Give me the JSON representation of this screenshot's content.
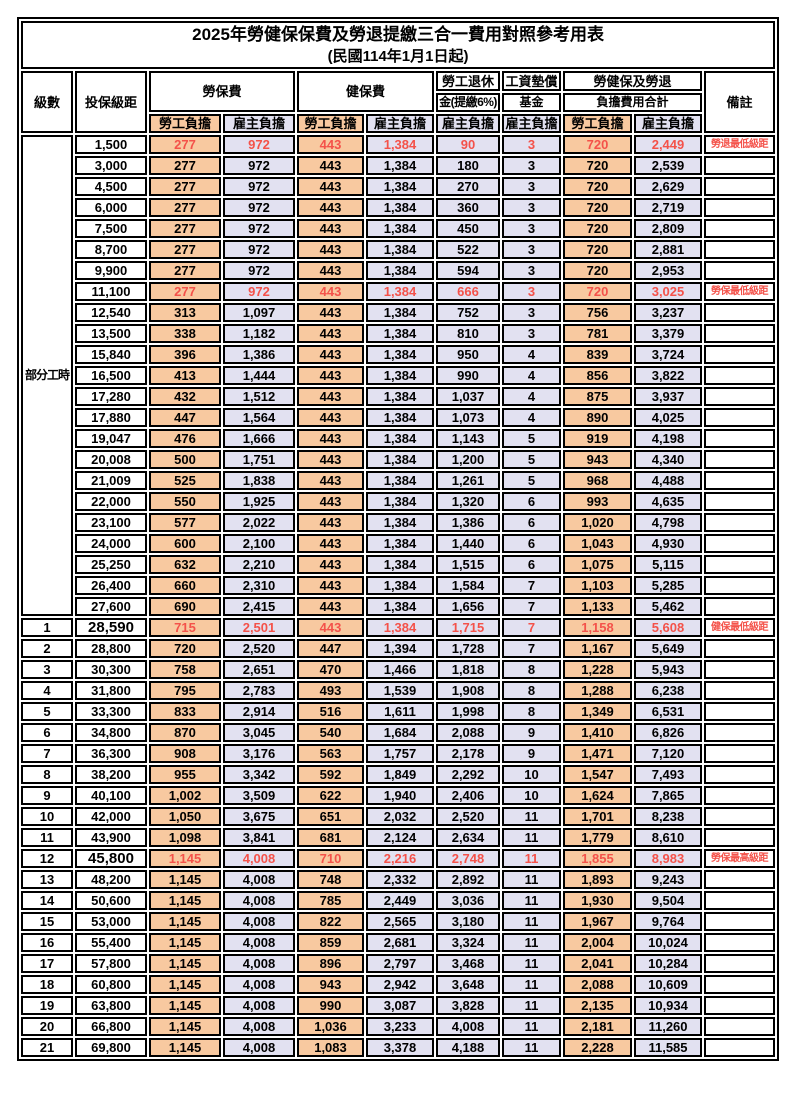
{
  "title": "2025年勞健保保費及勞退提繳三合一費用對照參考用表",
  "subtitle": "(民國114年1月1日起)",
  "colors": {
    "employee_col_bg": "#F8C9A0",
    "employer_col_bg": "#E2E1F1",
    "highlight_red": "#F4524A",
    "border": "#000000"
  },
  "header": {
    "level": "級數",
    "bracket": "投保級距",
    "labor_ins": "勞保費",
    "health_ins": "健保費",
    "pension_line1": "勞工退休",
    "pension_line2": "金(提繳6%)",
    "wage_fund_line1": "工資墊償",
    "wage_fund_line2": "基金",
    "total_line1": "勞健保及勞退",
    "total_line2": "負擔費用合計",
    "remark": "備註",
    "employee": "勞工負擔",
    "employer": "雇主負擔"
  },
  "part_time_label": "部分工時",
  "part_time_rowspan": 23,
  "rows": [
    {
      "level": "",
      "bracket": "1,500",
      "labor_emp": "277",
      "labor_er": "972",
      "health_emp": "443",
      "health_er": "1,384",
      "pension": "90",
      "wage": "3",
      "total_emp": "720",
      "total_er": "2,449",
      "remark": "勞退最低級距",
      "red": true
    },
    {
      "level": "",
      "bracket": "3,000",
      "labor_emp": "277",
      "labor_er": "972",
      "health_emp": "443",
      "health_er": "1,384",
      "pension": "180",
      "wage": "3",
      "total_emp": "720",
      "total_er": "2,539",
      "remark": ""
    },
    {
      "level": "",
      "bracket": "4,500",
      "labor_emp": "277",
      "labor_er": "972",
      "health_emp": "443",
      "health_er": "1,384",
      "pension": "270",
      "wage": "3",
      "total_emp": "720",
      "total_er": "2,629",
      "remark": ""
    },
    {
      "level": "",
      "bracket": "6,000",
      "labor_emp": "277",
      "labor_er": "972",
      "health_emp": "443",
      "health_er": "1,384",
      "pension": "360",
      "wage": "3",
      "total_emp": "720",
      "total_er": "2,719",
      "remark": ""
    },
    {
      "level": "",
      "bracket": "7,500",
      "labor_emp": "277",
      "labor_er": "972",
      "health_emp": "443",
      "health_er": "1,384",
      "pension": "450",
      "wage": "3",
      "total_emp": "720",
      "total_er": "2,809",
      "remark": ""
    },
    {
      "level": "",
      "bracket": "8,700",
      "labor_emp": "277",
      "labor_er": "972",
      "health_emp": "443",
      "health_er": "1,384",
      "pension": "522",
      "wage": "3",
      "total_emp": "720",
      "total_er": "2,881",
      "remark": ""
    },
    {
      "level": "",
      "bracket": "9,900",
      "labor_emp": "277",
      "labor_er": "972",
      "health_emp": "443",
      "health_er": "1,384",
      "pension": "594",
      "wage": "3",
      "total_emp": "720",
      "total_er": "2,953",
      "remark": ""
    },
    {
      "level": "",
      "bracket": "11,100",
      "labor_emp": "277",
      "labor_er": "972",
      "health_emp": "443",
      "health_er": "1,384",
      "pension": "666",
      "wage": "3",
      "total_emp": "720",
      "total_er": "3,025",
      "remark": "勞保最低級距",
      "red": true
    },
    {
      "level": "",
      "bracket": "12,540",
      "labor_emp": "313",
      "labor_er": "1,097",
      "health_emp": "443",
      "health_er": "1,384",
      "pension": "752",
      "wage": "3",
      "total_emp": "756",
      "total_er": "3,237",
      "remark": ""
    },
    {
      "level": "",
      "bracket": "13,500",
      "labor_emp": "338",
      "labor_er": "1,182",
      "health_emp": "443",
      "health_er": "1,384",
      "pension": "810",
      "wage": "3",
      "total_emp": "781",
      "total_er": "3,379",
      "remark": ""
    },
    {
      "level": "",
      "bracket": "15,840",
      "labor_emp": "396",
      "labor_er": "1,386",
      "health_emp": "443",
      "health_er": "1,384",
      "pension": "950",
      "wage": "4",
      "total_emp": "839",
      "total_er": "3,724",
      "remark": ""
    },
    {
      "level": "",
      "bracket": "16,500",
      "labor_emp": "413",
      "labor_er": "1,444",
      "health_emp": "443",
      "health_er": "1,384",
      "pension": "990",
      "wage": "4",
      "total_emp": "856",
      "total_er": "3,822",
      "remark": ""
    },
    {
      "level": "",
      "bracket": "17,280",
      "labor_emp": "432",
      "labor_er": "1,512",
      "health_emp": "443",
      "health_er": "1,384",
      "pension": "1,037",
      "wage": "4",
      "total_emp": "875",
      "total_er": "3,937",
      "remark": ""
    },
    {
      "level": "",
      "bracket": "17,880",
      "labor_emp": "447",
      "labor_er": "1,564",
      "health_emp": "443",
      "health_er": "1,384",
      "pension": "1,073",
      "wage": "4",
      "total_emp": "890",
      "total_er": "4,025",
      "remark": ""
    },
    {
      "level": "",
      "bracket": "19,047",
      "labor_emp": "476",
      "labor_er": "1,666",
      "health_emp": "443",
      "health_er": "1,384",
      "pension": "1,143",
      "wage": "5",
      "total_emp": "919",
      "total_er": "4,198",
      "remark": ""
    },
    {
      "level": "",
      "bracket": "20,008",
      "labor_emp": "500",
      "labor_er": "1,751",
      "health_emp": "443",
      "health_er": "1,384",
      "pension": "1,200",
      "wage": "5",
      "total_emp": "943",
      "total_er": "4,340",
      "remark": ""
    },
    {
      "level": "",
      "bracket": "21,009",
      "labor_emp": "525",
      "labor_er": "1,838",
      "health_emp": "443",
      "health_er": "1,384",
      "pension": "1,261",
      "wage": "5",
      "total_emp": "968",
      "total_er": "4,488",
      "remark": ""
    },
    {
      "level": "",
      "bracket": "22,000",
      "labor_emp": "550",
      "labor_er": "1,925",
      "health_emp": "443",
      "health_er": "1,384",
      "pension": "1,320",
      "wage": "6",
      "total_emp": "993",
      "total_er": "4,635",
      "remark": ""
    },
    {
      "level": "",
      "bracket": "23,100",
      "labor_emp": "577",
      "labor_er": "2,022",
      "health_emp": "443",
      "health_er": "1,384",
      "pension": "1,386",
      "wage": "6",
      "total_emp": "1,020",
      "total_er": "4,798",
      "remark": ""
    },
    {
      "level": "",
      "bracket": "24,000",
      "labor_emp": "600",
      "labor_er": "2,100",
      "health_emp": "443",
      "health_er": "1,384",
      "pension": "1,440",
      "wage": "6",
      "total_emp": "1,043",
      "total_er": "4,930",
      "remark": ""
    },
    {
      "level": "",
      "bracket": "25,250",
      "labor_emp": "632",
      "labor_er": "2,210",
      "health_emp": "443",
      "health_er": "1,384",
      "pension": "1,515",
      "wage": "6",
      "total_emp": "1,075",
      "total_er": "5,115",
      "remark": ""
    },
    {
      "level": "",
      "bracket": "26,400",
      "labor_emp": "660",
      "labor_er": "2,310",
      "health_emp": "443",
      "health_er": "1,384",
      "pension": "1,584",
      "wage": "7",
      "total_emp": "1,103",
      "total_er": "5,285",
      "remark": ""
    },
    {
      "level": "",
      "bracket": "27,600",
      "labor_emp": "690",
      "labor_er": "2,415",
      "health_emp": "443",
      "health_er": "1,384",
      "pension": "1,656",
      "wage": "7",
      "total_emp": "1,133",
      "total_er": "5,462",
      "remark": ""
    },
    {
      "level": "1",
      "bracket": "28,590",
      "labor_emp": "715",
      "labor_er": "2,501",
      "health_emp": "443",
      "health_er": "1,384",
      "pension": "1,715",
      "wage": "7",
      "total_emp": "1,158",
      "total_er": "5,608",
      "remark": "健保最低級距",
      "red": true,
      "big": true
    },
    {
      "level": "2",
      "bracket": "28,800",
      "labor_emp": "720",
      "labor_er": "2,520",
      "health_emp": "447",
      "health_er": "1,394",
      "pension": "1,728",
      "wage": "7",
      "total_emp": "1,167",
      "total_er": "5,649",
      "remark": ""
    },
    {
      "level": "3",
      "bracket": "30,300",
      "labor_emp": "758",
      "labor_er": "2,651",
      "health_emp": "470",
      "health_er": "1,466",
      "pension": "1,818",
      "wage": "8",
      "total_emp": "1,228",
      "total_er": "5,943",
      "remark": ""
    },
    {
      "level": "4",
      "bracket": "31,800",
      "labor_emp": "795",
      "labor_er": "2,783",
      "health_emp": "493",
      "health_er": "1,539",
      "pension": "1,908",
      "wage": "8",
      "total_emp": "1,288",
      "total_er": "6,238",
      "remark": ""
    },
    {
      "level": "5",
      "bracket": "33,300",
      "labor_emp": "833",
      "labor_er": "2,914",
      "health_emp": "516",
      "health_er": "1,611",
      "pension": "1,998",
      "wage": "8",
      "total_emp": "1,349",
      "total_er": "6,531",
      "remark": ""
    },
    {
      "level": "6",
      "bracket": "34,800",
      "labor_emp": "870",
      "labor_er": "3,045",
      "health_emp": "540",
      "health_er": "1,684",
      "pension": "2,088",
      "wage": "9",
      "total_emp": "1,410",
      "total_er": "6,826",
      "remark": ""
    },
    {
      "level": "7",
      "bracket": "36,300",
      "labor_emp": "908",
      "labor_er": "3,176",
      "health_emp": "563",
      "health_er": "1,757",
      "pension": "2,178",
      "wage": "9",
      "total_emp": "1,471",
      "total_er": "7,120",
      "remark": ""
    },
    {
      "level": "8",
      "bracket": "38,200",
      "labor_emp": "955",
      "labor_er": "3,342",
      "health_emp": "592",
      "health_er": "1,849",
      "pension": "2,292",
      "wage": "10",
      "total_emp": "1,547",
      "total_er": "7,493",
      "remark": ""
    },
    {
      "level": "9",
      "bracket": "40,100",
      "labor_emp": "1,002",
      "labor_er": "3,509",
      "health_emp": "622",
      "health_er": "1,940",
      "pension": "2,406",
      "wage": "10",
      "total_emp": "1,624",
      "total_er": "7,865",
      "remark": ""
    },
    {
      "level": "10",
      "bracket": "42,000",
      "labor_emp": "1,050",
      "labor_er": "3,675",
      "health_emp": "651",
      "health_er": "2,032",
      "pension": "2,520",
      "wage": "11",
      "total_emp": "1,701",
      "total_er": "8,238",
      "remark": ""
    },
    {
      "level": "11",
      "bracket": "43,900",
      "labor_emp": "1,098",
      "labor_er": "3,841",
      "health_emp": "681",
      "health_er": "2,124",
      "pension": "2,634",
      "wage": "11",
      "total_emp": "1,779",
      "total_er": "8,610",
      "remark": ""
    },
    {
      "level": "12",
      "bracket": "45,800",
      "labor_emp": "1,145",
      "labor_er": "4,008",
      "health_emp": "710",
      "health_er": "2,216",
      "pension": "2,748",
      "wage": "11",
      "total_emp": "1,855",
      "total_er": "8,983",
      "remark": "勞保最高級距",
      "red": true,
      "big": true
    },
    {
      "level": "13",
      "bracket": "48,200",
      "labor_emp": "1,145",
      "labor_er": "4,008",
      "health_emp": "748",
      "health_er": "2,332",
      "pension": "2,892",
      "wage": "11",
      "total_emp": "1,893",
      "total_er": "9,243",
      "remark": ""
    },
    {
      "level": "14",
      "bracket": "50,600",
      "labor_emp": "1,145",
      "labor_er": "4,008",
      "health_emp": "785",
      "health_er": "2,449",
      "pension": "3,036",
      "wage": "11",
      "total_emp": "1,930",
      "total_er": "9,504",
      "remark": ""
    },
    {
      "level": "15",
      "bracket": "53,000",
      "labor_emp": "1,145",
      "labor_er": "4,008",
      "health_emp": "822",
      "health_er": "2,565",
      "pension": "3,180",
      "wage": "11",
      "total_emp": "1,967",
      "total_er": "9,764",
      "remark": ""
    },
    {
      "level": "16",
      "bracket": "55,400",
      "labor_emp": "1,145",
      "labor_er": "4,008",
      "health_emp": "859",
      "health_er": "2,681",
      "pension": "3,324",
      "wage": "11",
      "total_emp": "2,004",
      "total_er": "10,024",
      "remark": ""
    },
    {
      "level": "17",
      "bracket": "57,800",
      "labor_emp": "1,145",
      "labor_er": "4,008",
      "health_emp": "896",
      "health_er": "2,797",
      "pension": "3,468",
      "wage": "11",
      "total_emp": "2,041",
      "total_er": "10,284",
      "remark": ""
    },
    {
      "level": "18",
      "bracket": "60,800",
      "labor_emp": "1,145",
      "labor_er": "4,008",
      "health_emp": "943",
      "health_er": "2,942",
      "pension": "3,648",
      "wage": "11",
      "total_emp": "2,088",
      "total_er": "10,609",
      "remark": ""
    },
    {
      "level": "19",
      "bracket": "63,800",
      "labor_emp": "1,145",
      "labor_er": "4,008",
      "health_emp": "990",
      "health_er": "3,087",
      "pension": "3,828",
      "wage": "11",
      "total_emp": "2,135",
      "total_er": "10,934",
      "remark": ""
    },
    {
      "level": "20",
      "bracket": "66,800",
      "labor_emp": "1,145",
      "labor_er": "4,008",
      "health_emp": "1,036",
      "health_er": "3,233",
      "pension": "4,008",
      "wage": "11",
      "total_emp": "2,181",
      "total_er": "11,260",
      "remark": ""
    },
    {
      "level": "21",
      "bracket": "69,800",
      "labor_emp": "1,145",
      "labor_er": "4,008",
      "health_emp": "1,083",
      "health_er": "3,378",
      "pension": "4,188",
      "wage": "11",
      "total_emp": "2,228",
      "total_er": "11,585",
      "remark": ""
    }
  ]
}
